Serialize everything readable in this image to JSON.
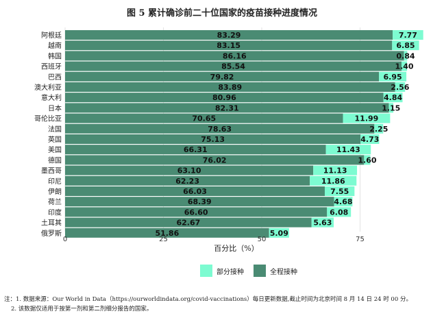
{
  "chart_data": {
    "type": "bar",
    "orientation": "horizontal",
    "stacked": true,
    "title": "图 5  累计确诊前二十位国家的疫苗接种进度情况",
    "xlabel": "百分比（%）",
    "xlim": [
      0,
      90
    ],
    "xticks": [
      0,
      25,
      50,
      75
    ],
    "categories": [
      "阿根廷",
      "越南",
      "韩国",
      "西班牙",
      "巴西",
      "澳大利亚",
      "意大利",
      "日本",
      "哥伦比亚",
      "法国",
      "英国",
      "美国",
      "德国",
      "墨西哥",
      "印尼",
      "伊朗",
      "荷兰",
      "印度",
      "土耳其",
      "俄罗斯"
    ],
    "series": [
      {
        "name": "全程接种",
        "color": "#4a8b73",
        "values": [
          83.29,
          83.15,
          86.16,
          85.54,
          79.82,
          83.89,
          80.96,
          82.31,
          70.65,
          78.63,
          75.13,
          66.31,
          76.02,
          63.1,
          62.23,
          66.03,
          68.39,
          66.6,
          62.67,
          51.86
        ]
      },
      {
        "name": "部分接种",
        "color": "#7dfbd1",
        "values": [
          7.77,
          6.85,
          0.84,
          1.4,
          6.95,
          2.56,
          4.84,
          1.15,
          11.99,
          2.25,
          4.73,
          11.43,
          1.6,
          11.13,
          11.86,
          7.55,
          4.68,
          6.08,
          5.63,
          5.09
        ]
      }
    ],
    "legend_position": "bottom"
  },
  "labels": {
    "full": [
      "83.29",
      "83.15",
      "86.16",
      "85.54",
      "79.82",
      "83.89",
      "80.96",
      "82.31",
      "70.65",
      "78.63",
      "75.13",
      "66.31",
      "76.02",
      "63.10",
      "62.23",
      "66.03",
      "68.39",
      "66.60",
      "62.67",
      "51.86"
    ],
    "partial": [
      "7.77",
      "6.85",
      "0.84",
      "1.40",
      "6.95",
      "2.56",
      "4.84",
      "1.15",
      "11.99",
      "2.25",
      "4.73",
      "11.43",
      "1.60",
      "11.13",
      "11.86",
      "7.55",
      "4.68",
      "6.08",
      "5.63",
      "5.09"
    ]
  },
  "legend": {
    "partial": "部分接种",
    "full": "全程接种"
  },
  "notes": {
    "line1": "注：1. 数据来源：Our World in Data（https://ourworldindata.org/covid-vaccinations）每日更新数据,截止时间为北京时间 8 月 14 日 24 时 00 分。",
    "line2": "2. 该数据仅适用于按第一剂和第二剂细分报告的国家。"
  }
}
